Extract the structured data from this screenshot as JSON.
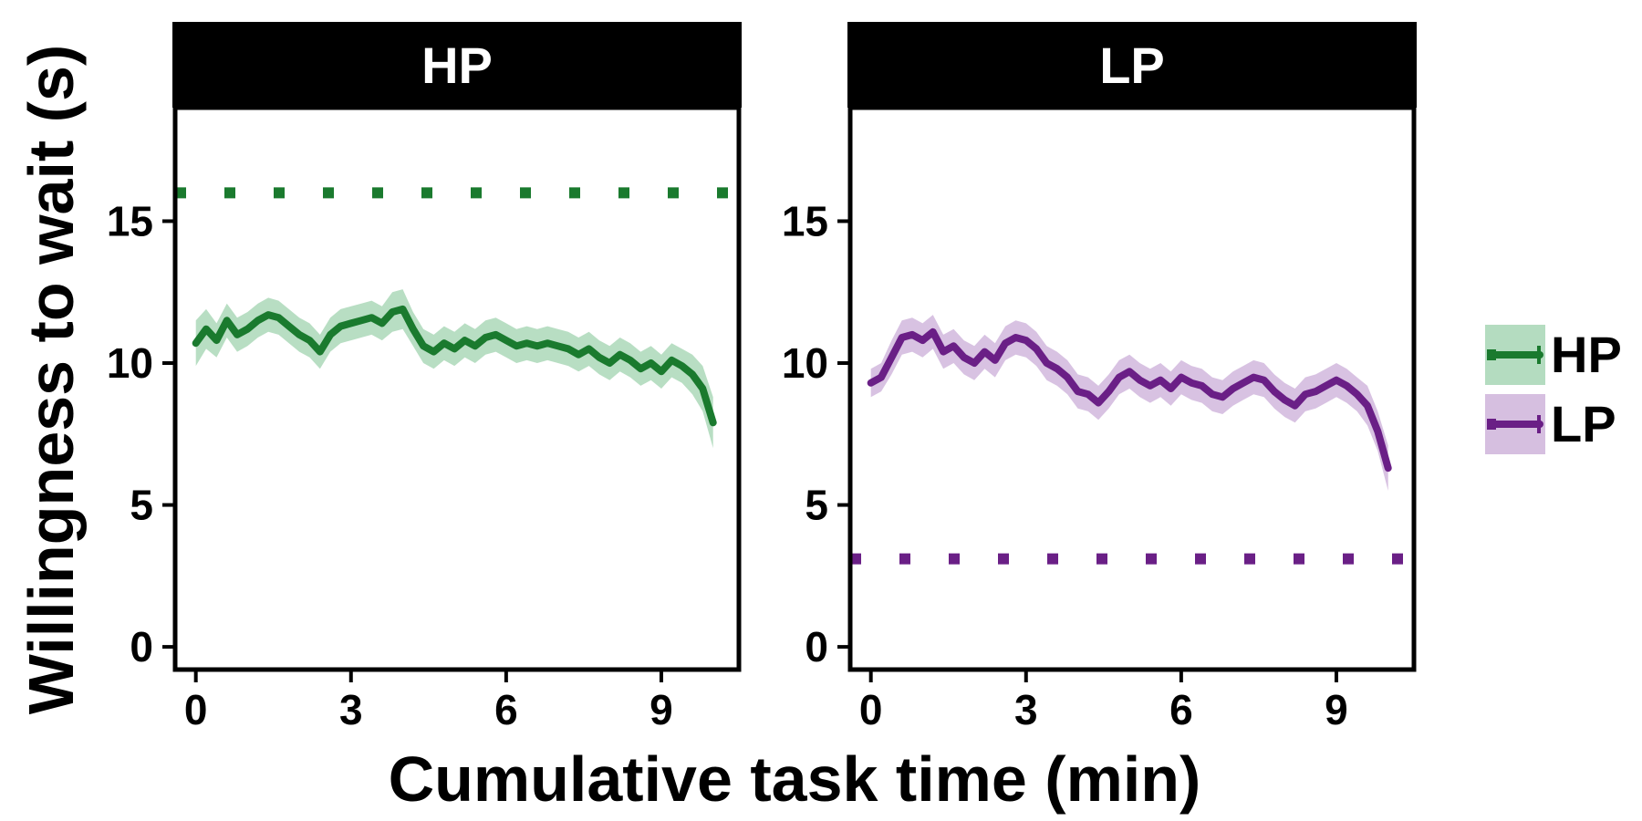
{
  "chart_data": {
    "type": "line",
    "xlabel": "Cumulative task time (min)",
    "ylabel": "Willingness to wait (s)",
    "xlim": [
      -0.4,
      10.5
    ],
    "ylim": [
      -0.8,
      19
    ],
    "xticks": [
      0,
      3,
      6,
      9
    ],
    "xtick_labels": [
      "0",
      "3",
      "6",
      "9"
    ],
    "yticks": [
      0,
      5,
      10,
      15
    ],
    "ytick_labels": [
      "0",
      "5",
      "10",
      "15"
    ],
    "grid": false,
    "legend_position": "right",
    "colors": {
      "HP": "#1a7a2e",
      "HP_band": "#b4dcc0",
      "LP": "#6a1f86",
      "LP_band": "#d6bfe0"
    },
    "panels": [
      {
        "strip": "HP",
        "color_key": "HP",
        "reference_y": 16,
        "series": {
          "name": "HP",
          "x": [
            0,
            0.2,
            0.4,
            0.6,
            0.8,
            1.0,
            1.2,
            1.4,
            1.6,
            1.8,
            2.0,
            2.2,
            2.4,
            2.6,
            2.8,
            3.0,
            3.2,
            3.4,
            3.6,
            3.8,
            4.0,
            4.2,
            4.4,
            4.6,
            4.8,
            5.0,
            5.2,
            5.4,
            5.6,
            5.8,
            6.0,
            6.2,
            6.4,
            6.6,
            6.8,
            7.0,
            7.2,
            7.4,
            7.6,
            7.8,
            8.0,
            8.2,
            8.4,
            8.6,
            8.8,
            9.0,
            9.2,
            9.4,
            9.6,
            9.8,
            10.0
          ],
          "y": [
            10.7,
            11.2,
            10.8,
            11.5,
            11.0,
            11.2,
            11.5,
            11.7,
            11.6,
            11.3,
            11.0,
            10.8,
            10.4,
            11.0,
            11.3,
            11.4,
            11.5,
            11.6,
            11.4,
            11.8,
            11.9,
            11.2,
            10.6,
            10.4,
            10.7,
            10.5,
            10.8,
            10.6,
            10.9,
            11.0,
            10.8,
            10.6,
            10.7,
            10.6,
            10.7,
            10.6,
            10.5,
            10.3,
            10.5,
            10.2,
            10.0,
            10.3,
            10.1,
            9.8,
            10.0,
            9.7,
            10.1,
            9.9,
            9.6,
            9.1,
            7.9
          ],
          "band_halfwidth": [
            0.8,
            0.7,
            0.6,
            0.6,
            0.6,
            0.6,
            0.6,
            0.6,
            0.6,
            0.6,
            0.6,
            0.6,
            0.6,
            0.6,
            0.6,
            0.6,
            0.6,
            0.6,
            0.6,
            0.7,
            0.7,
            0.6,
            0.6,
            0.6,
            0.6,
            0.6,
            0.6,
            0.6,
            0.6,
            0.6,
            0.6,
            0.6,
            0.6,
            0.6,
            0.6,
            0.6,
            0.6,
            0.6,
            0.6,
            0.6,
            0.6,
            0.6,
            0.6,
            0.6,
            0.6,
            0.6,
            0.6,
            0.6,
            0.7,
            0.8,
            0.9
          ]
        }
      },
      {
        "strip": "LP",
        "color_key": "LP",
        "reference_y": 3.1,
        "series": {
          "name": "LP",
          "x": [
            0,
            0.2,
            0.4,
            0.6,
            0.8,
            1.0,
            1.2,
            1.4,
            1.6,
            1.8,
            2.0,
            2.2,
            2.4,
            2.6,
            2.8,
            3.0,
            3.2,
            3.4,
            3.6,
            3.8,
            4.0,
            4.2,
            4.4,
            4.6,
            4.8,
            5.0,
            5.2,
            5.4,
            5.6,
            5.8,
            6.0,
            6.2,
            6.4,
            6.6,
            6.8,
            7.0,
            7.2,
            7.4,
            7.6,
            7.8,
            8.0,
            8.2,
            8.4,
            8.6,
            8.8,
            9.0,
            9.2,
            9.4,
            9.6,
            9.8,
            10.0
          ],
          "y": [
            9.3,
            9.5,
            10.2,
            10.9,
            11.0,
            10.8,
            11.1,
            10.4,
            10.6,
            10.2,
            10.0,
            10.4,
            10.1,
            10.7,
            10.9,
            10.8,
            10.5,
            10.0,
            9.8,
            9.5,
            9.0,
            8.9,
            8.6,
            9.0,
            9.5,
            9.7,
            9.4,
            9.2,
            9.4,
            9.1,
            9.5,
            9.3,
            9.2,
            8.9,
            8.8,
            9.1,
            9.3,
            9.5,
            9.4,
            9.0,
            8.7,
            8.5,
            8.9,
            9.0,
            9.2,
            9.4,
            9.2,
            8.9,
            8.5,
            7.6,
            6.3
          ],
          "band_halfwidth": [
            0.5,
            0.5,
            0.6,
            0.6,
            0.6,
            0.6,
            0.6,
            0.6,
            0.6,
            0.6,
            0.6,
            0.6,
            0.6,
            0.6,
            0.6,
            0.6,
            0.6,
            0.6,
            0.6,
            0.6,
            0.6,
            0.6,
            0.6,
            0.6,
            0.6,
            0.6,
            0.6,
            0.6,
            0.6,
            0.6,
            0.6,
            0.6,
            0.6,
            0.6,
            0.6,
            0.6,
            0.6,
            0.6,
            0.6,
            0.6,
            0.6,
            0.6,
            0.6,
            0.6,
            0.6,
            0.6,
            0.6,
            0.6,
            0.7,
            0.7,
            0.8
          ]
        }
      }
    ],
    "legend": [
      {
        "label": "HP",
        "color_key": "HP"
      },
      {
        "label": "LP",
        "color_key": "LP"
      }
    ]
  }
}
